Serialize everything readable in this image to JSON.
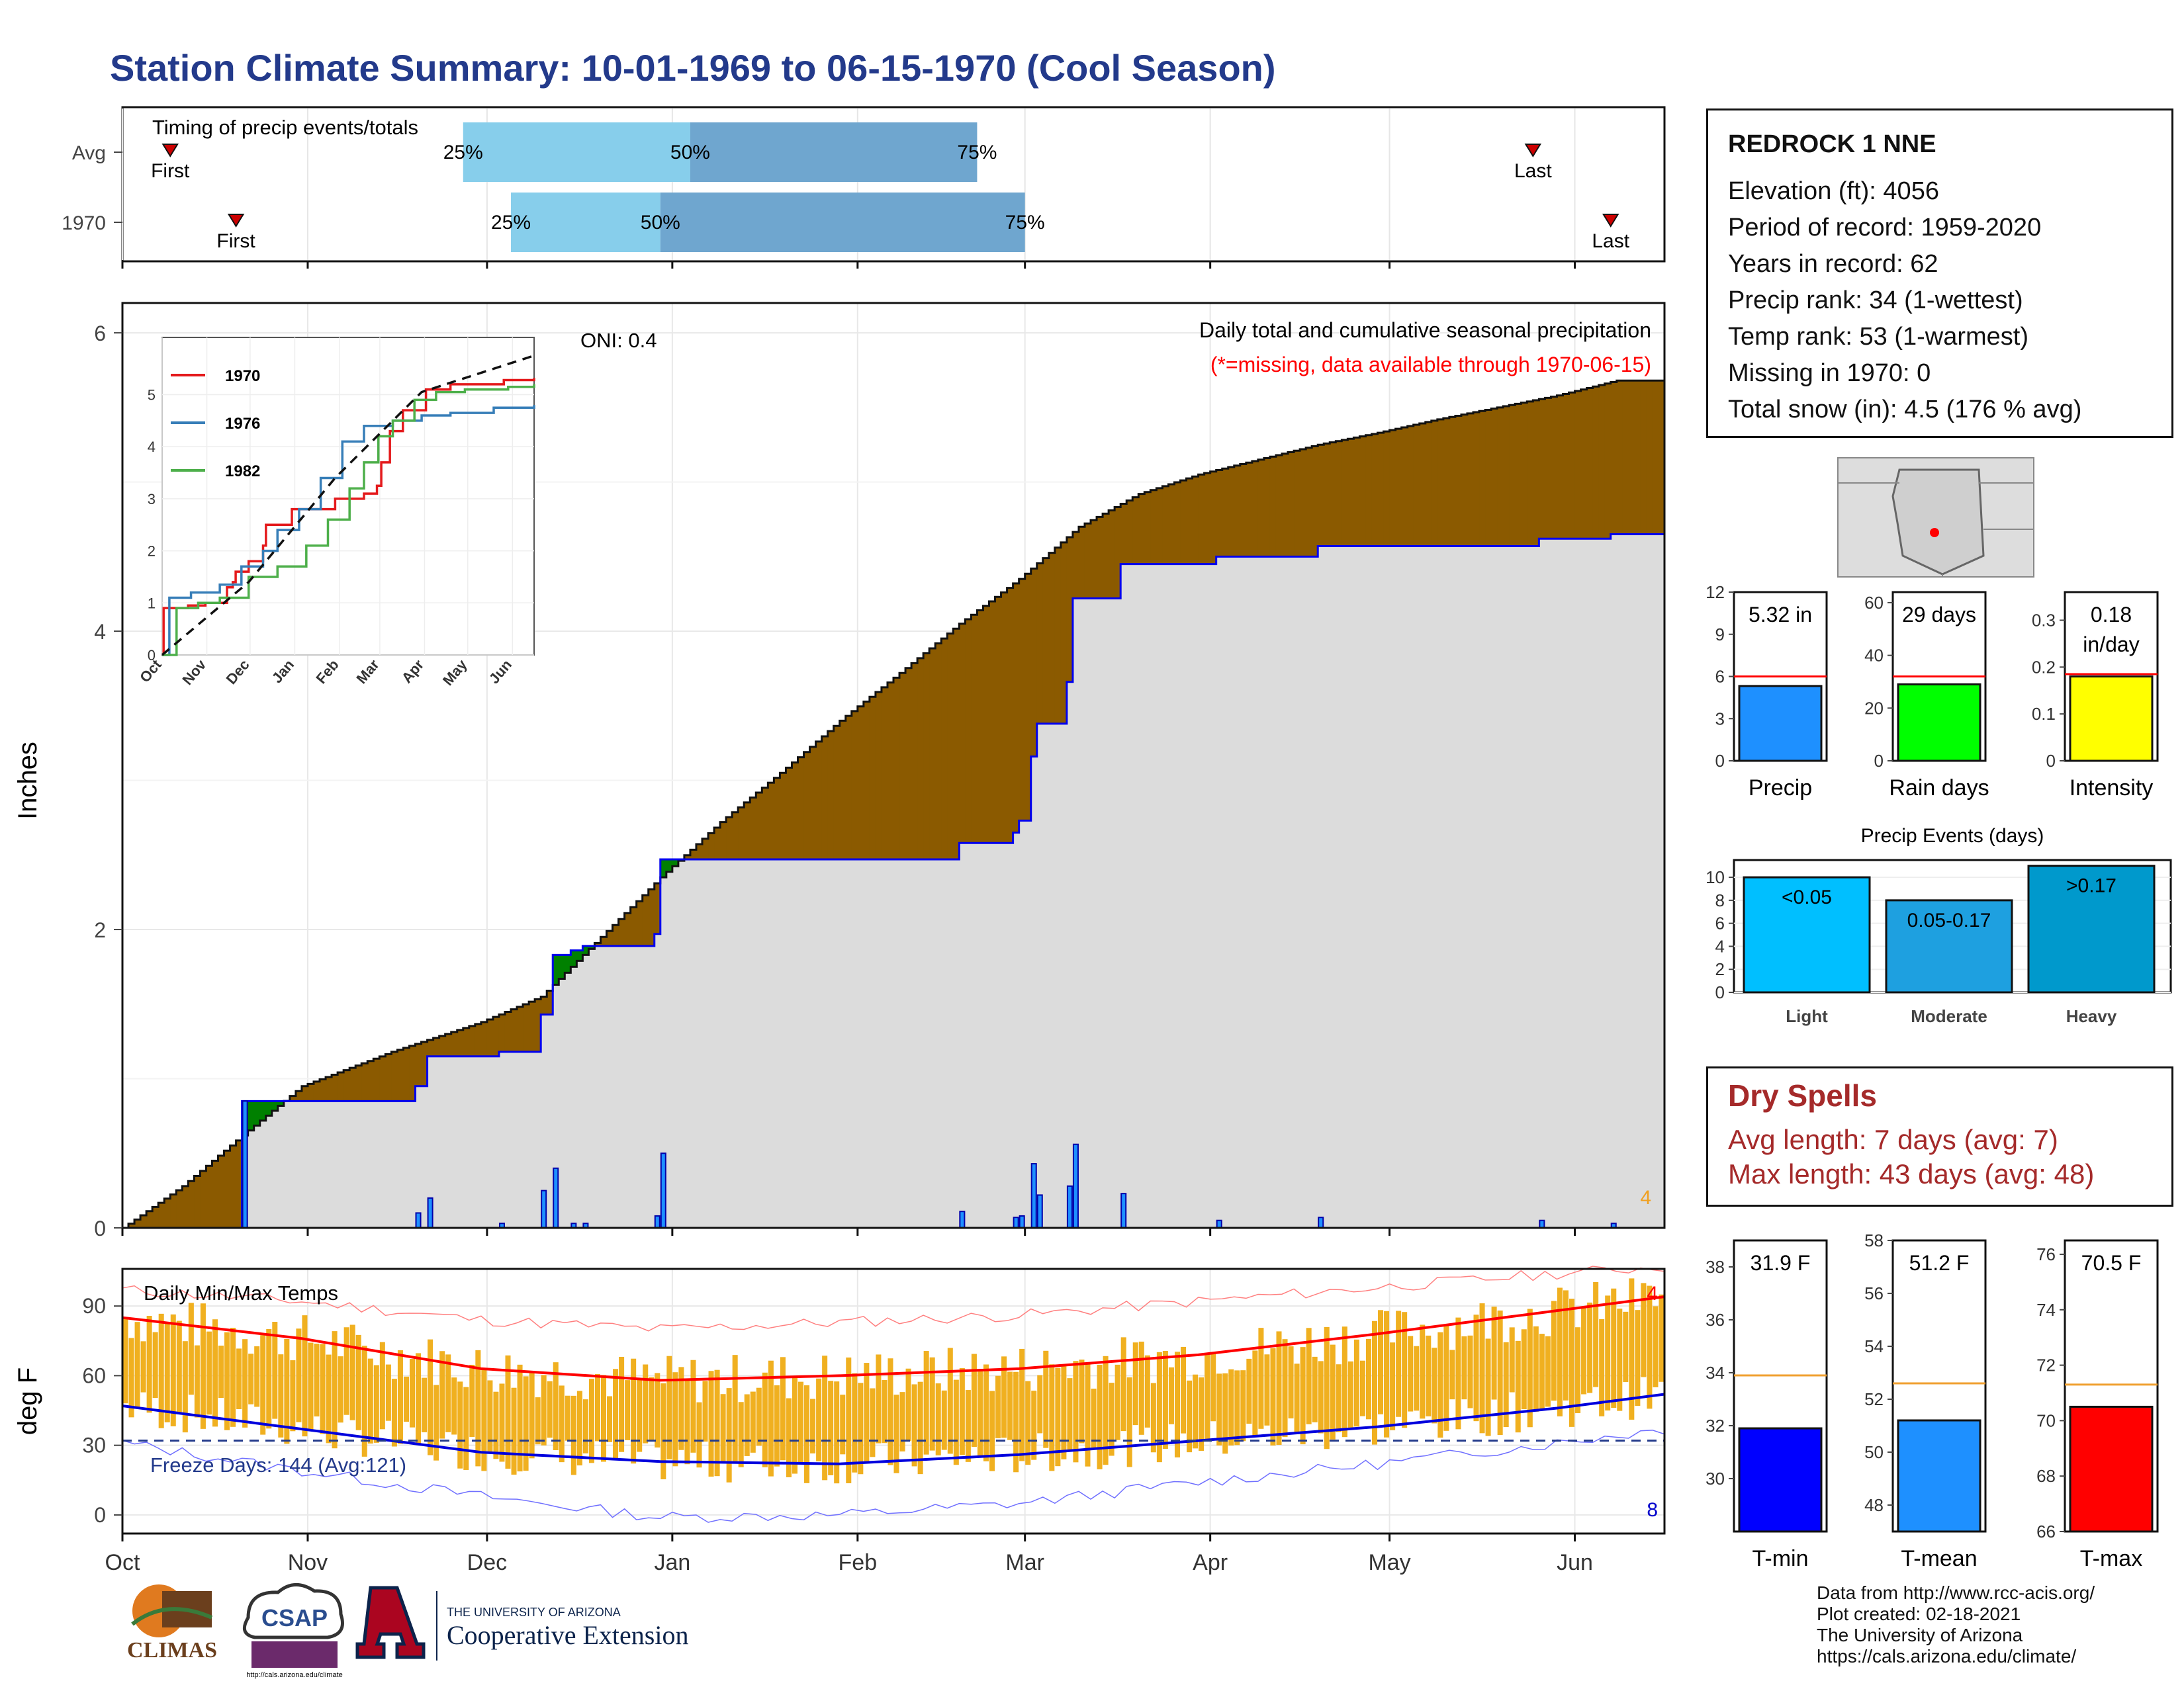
{
  "title": "Station Climate Summary: 10-01-1969 to 06-15-1970 (Cool Season)",
  "station": {
    "name": "REDROCK 1 NNE",
    "lines": [
      "Elevation (ft): 4056",
      "Period of record: 1959-2020",
      "Years in record: 62",
      "Precip rank: 34 (1-wettest)",
      "Temp rank: 53 (1-warmest)",
      "Missing in 1970: 0",
      "Total snow (in): 4.5 (176 % avg)"
    ]
  },
  "dry_spells": {
    "title": "Dry Spells",
    "avg": "Avg length: 7 days (avg: 7)",
    "max": "Max length: 43 days (avg: 48)"
  },
  "credits": [
    "Data from http://www.rcc-acis.org/",
    "Plot created: 02-18-2021",
    "The University of Arizona",
    "https://cals.arizona.edu/climate/"
  ],
  "logos": {
    "climas": "CLIMAS",
    "csap": "CSAP",
    "csap_url": "http://cals.arizona.edu/climate",
    "ua_small": "THE UNIVERSITY OF ARIZONA",
    "ua_big": "Cooperative Extension"
  },
  "colors": {
    "title": "#233a8b",
    "surplus": "#008000",
    "deficit": "#8b5a00",
    "cumulative_line": "#0000ee",
    "precip_bar": "#1e90ff",
    "rain_days_bar": "#00ff00",
    "intensity_bar": "#ffff00",
    "tmin_bar": "#0000ff",
    "tmax_bar": "#ff0000",
    "temp_range_bar": "#f0b020",
    "dry_spells": "#a52a2a"
  },
  "chart_data": [
    {
      "type": "bar",
      "id": "timing",
      "title": "Timing of precip events/totals",
      "rows": [
        {
          "label": "Avg",
          "first": "First",
          "last": "Last",
          "first_date": "1969-10-09",
          "last_date": "1970-05-25",
          "p25": "1969-11-27",
          "p50": "1970-01-04",
          "p75": "1970-02-21",
          "p25_label": "25%",
          "p50_label": "50%",
          "p75_label": "75%"
        },
        {
          "label": "1970",
          "first": "First",
          "last": "Last",
          "first_date": "1969-10-20",
          "last_date": "1970-06-07",
          "p25": "1969-12-05",
          "p50": "1969-12-30",
          "p75": "1970-03-01",
          "p25_label": "25%",
          "p50_label": "50%",
          "p75_label": "75%"
        }
      ],
      "xlim": [
        "1969-10-01",
        "1970-06-15"
      ]
    },
    {
      "type": "area",
      "id": "precip",
      "ylabel": "Inches",
      "ylim": [
        0,
        6.2
      ],
      "yticks": [
        0,
        2,
        4,
        6
      ],
      "xticks": [
        "Oct",
        "Nov",
        "Dec",
        "Jan",
        "Feb",
        "Mar",
        "Apr",
        "May",
        "Jun"
      ],
      "annotation_title": "Daily total and cumulative seasonal precipitation",
      "annotation_missing": "(*=missing, data available through 1970-06-15)",
      "oni": "ONI: 0.4",
      "corner_label": "4",
      "avg_cumulative": [
        [
          0,
          0
        ],
        [
          10,
          0.28
        ],
        [
          20,
          0.62
        ],
        [
          30,
          0.95
        ],
        [
          45,
          1.18
        ],
        [
          60,
          1.38
        ],
        [
          70,
          1.55
        ],
        [
          80,
          1.95
        ],
        [
          90,
          2.35
        ],
        [
          100,
          2.72
        ],
        [
          110,
          3.05
        ],
        [
          120,
          3.4
        ],
        [
          130,
          3.72
        ],
        [
          140,
          4.05
        ],
        [
          150,
          4.35
        ],
        [
          160,
          4.7
        ],
        [
          170,
          4.92
        ],
        [
          180,
          5.05
        ],
        [
          190,
          5.15
        ],
        [
          200,
          5.25
        ],
        [
          210,
          5.33
        ],
        [
          220,
          5.42
        ],
        [
          230,
          5.5
        ],
        [
          240,
          5.58
        ],
        [
          250,
          5.68
        ]
      ],
      "events": [
        {
          "day": 20,
          "in": 0.85
        },
        {
          "day": 49,
          "in": 0.1
        },
        {
          "day": 51,
          "in": 0.2
        },
        {
          "day": 63,
          "in": 0.03
        },
        {
          "day": 70,
          "in": 0.25
        },
        {
          "day": 72,
          "in": 0.4
        },
        {
          "day": 75,
          "in": 0.03
        },
        {
          "day": 77,
          "in": 0.03
        },
        {
          "day": 89,
          "in": 0.08
        },
        {
          "day": 90,
          "in": 0.5
        },
        {
          "day": 140,
          "in": 0.11
        },
        {
          "day": 149,
          "in": 0.07
        },
        {
          "day": 150,
          "in": 0.08
        },
        {
          "day": 152,
          "in": 0.43
        },
        {
          "day": 153,
          "in": 0.22
        },
        {
          "day": 158,
          "in": 0.28
        },
        {
          "day": 159,
          "in": 0.56
        },
        {
          "day": 167,
          "in": 0.23
        },
        {
          "day": 183,
          "in": 0.05
        },
        {
          "day": 200,
          "in": 0.07
        },
        {
          "day": 237,
          "in": 0.05
        },
        {
          "day": 249,
          "in": 0.03
        }
      ]
    },
    {
      "type": "line",
      "id": "inset",
      "xticks": [
        "Oct",
        "Nov",
        "Dec",
        "Jan",
        "Feb",
        "Mar",
        "Apr",
        "May",
        "Jun"
      ],
      "yticks": [
        0,
        1,
        2,
        3,
        4,
        5
      ],
      "ylim": [
        0,
        6
      ],
      "series": [
        {
          "name": "1970",
          "color": "#e41a1c",
          "values": [
            [
              0,
              0
            ],
            [
              1,
              0.9
            ],
            [
              18,
              0.95
            ],
            [
              30,
              1.0
            ],
            [
              45,
              1.3
            ],
            [
              49,
              1.4
            ],
            [
              51,
              1.6
            ],
            [
              60,
              1.8
            ],
            [
              70,
              2.1
            ],
            [
              72,
              2.5
            ],
            [
              90,
              2.8
            ],
            [
              120,
              3.0
            ],
            [
              140,
              3.1
            ],
            [
              149,
              3.25
            ],
            [
              152,
              3.7
            ],
            [
              158,
              4.3
            ],
            [
              167,
              4.7
            ],
            [
              183,
              5.1
            ],
            [
              200,
              5.2
            ],
            [
              237,
              5.28
            ],
            [
              258,
              5.32
            ]
          ]
        },
        {
          "name": "1976",
          "color": "#377eb8",
          "values": [
            [
              0,
              0
            ],
            [
              5,
              1.1
            ],
            [
              20,
              1.2
            ],
            [
              40,
              1.35
            ],
            [
              55,
              1.7
            ],
            [
              70,
              2.0
            ],
            [
              80,
              2.4
            ],
            [
              95,
              2.8
            ],
            [
              110,
              3.4
            ],
            [
              125,
              4.1
            ],
            [
              140,
              4.4
            ],
            [
              160,
              4.5
            ],
            [
              180,
              4.6
            ],
            [
              200,
              4.65
            ],
            [
              230,
              4.75
            ],
            [
              258,
              4.8
            ]
          ]
        },
        {
          "name": "1982",
          "color": "#4daf4a",
          "values": [
            [
              0,
              0
            ],
            [
              10,
              0.9
            ],
            [
              25,
              1.0
            ],
            [
              40,
              1.1
            ],
            [
              60,
              1.5
            ],
            [
              80,
              1.7
            ],
            [
              100,
              2.1
            ],
            [
              115,
              2.6
            ],
            [
              130,
              3.2
            ],
            [
              140,
              3.7
            ],
            [
              150,
              4.2
            ],
            [
              160,
              4.5
            ],
            [
              175,
              4.9
            ],
            [
              190,
              5.05
            ],
            [
              210,
              5.1
            ],
            [
              240,
              5.15
            ],
            [
              258,
              5.2
            ]
          ]
        }
      ],
      "avg_series": {
        "name": "Avg",
        "values": [
          [
            0,
            0
          ],
          [
            60,
            1.4
          ],
          [
            120,
            3.4
          ],
          [
            180,
            5.05
          ],
          [
            258,
            5.75
          ]
        ]
      }
    },
    {
      "type": "bar",
      "id": "temps",
      "title": "Daily Min/Max Temps",
      "ylabel": "deg F",
      "ylim": [
        -8,
        106
      ],
      "yticks": [
        0,
        30,
        60,
        90
      ],
      "xticks": [
        "Oct",
        "Nov",
        "Dec",
        "Jan",
        "Feb",
        "Mar",
        "Apr",
        "May",
        "Jun"
      ],
      "freeze_label": "Freeze Days: 144 (Avg:121)",
      "freeze_line": 32,
      "corner_top": "4",
      "corner_bottom": "8",
      "avg_max": [
        [
          0,
          85
        ],
        [
          30,
          76
        ],
        [
          60,
          63
        ],
        [
          90,
          58
        ],
        [
          120,
          60
        ],
        [
          150,
          63
        ],
        [
          180,
          69
        ],
        [
          210,
          78
        ],
        [
          240,
          88
        ],
        [
          258,
          94
        ]
      ],
      "avg_min": [
        [
          0,
          47
        ],
        [
          30,
          37
        ],
        [
          60,
          27
        ],
        [
          90,
          23
        ],
        [
          120,
          22
        ],
        [
          150,
          26
        ],
        [
          180,
          32
        ],
        [
          210,
          38
        ],
        [
          240,
          46
        ],
        [
          258,
          52
        ]
      ],
      "rec_max": [
        [
          0,
          97
        ],
        [
          30,
          92
        ],
        [
          60,
          84
        ],
        [
          90,
          80
        ],
        [
          120,
          83
        ],
        [
          150,
          86
        ],
        [
          180,
          92
        ],
        [
          210,
          98
        ],
        [
          240,
          104
        ],
        [
          258,
          107
        ]
      ],
      "rec_min": [
        [
          0,
          31
        ],
        [
          30,
          19
        ],
        [
          60,
          8
        ],
        [
          90,
          -1
        ],
        [
          120,
          0
        ],
        [
          150,
          5
        ],
        [
          180,
          14
        ],
        [
          210,
          22
        ],
        [
          240,
          31
        ],
        [
          258,
          37
        ]
      ]
    },
    {
      "type": "bar",
      "id": "totals",
      "categories": [
        "Precip",
        "Rain days",
        "Intensity"
      ],
      "values": [
        5.32,
        29,
        0.18
      ],
      "avg_lines": [
        6.0,
        32,
        0.185
      ],
      "labels": [
        "5.32 in",
        "29 days",
        "0.18 in/day"
      ],
      "ylims": [
        [
          0,
          12
        ],
        [
          0,
          64
        ],
        [
          0,
          0.36
        ]
      ],
      "yticks": [
        [
          0,
          3,
          6,
          9,
          12
        ],
        [
          0,
          20,
          40,
          60
        ],
        [
          0.0,
          0.1,
          0.2,
          0.3
        ]
      ]
    },
    {
      "type": "bar",
      "id": "events",
      "title": "Precip Events (days)",
      "categories": [
        "Light",
        "Moderate",
        "Heavy"
      ],
      "values": [
        10,
        8,
        11
      ],
      "labels": [
        "<0.05",
        "0.05-0.17",
        ">0.17"
      ],
      "ylim": [
        0,
        11.5
      ],
      "yticks": [
        0,
        2,
        4,
        6,
        8,
        10
      ]
    },
    {
      "type": "bar",
      "id": "temp_summary",
      "categories": [
        "T-min",
        "T-mean",
        "T-max"
      ],
      "values": [
        31.9,
        51.2,
        70.5
      ],
      "avg_lines": [
        33.9,
        52.6,
        71.3
      ],
      "labels": [
        "31.9 F",
        "51.2 F",
        "70.5 F"
      ],
      "ylims": [
        [
          28,
          39
        ],
        [
          47,
          58
        ],
        [
          66,
          76.5
        ]
      ],
      "yticks": [
        [
          30,
          32,
          34,
          36,
          38
        ],
        [
          48,
          50,
          52,
          54,
          56,
          58
        ],
        [
          66,
          68,
          70,
          72,
          74,
          76
        ]
      ]
    }
  ]
}
